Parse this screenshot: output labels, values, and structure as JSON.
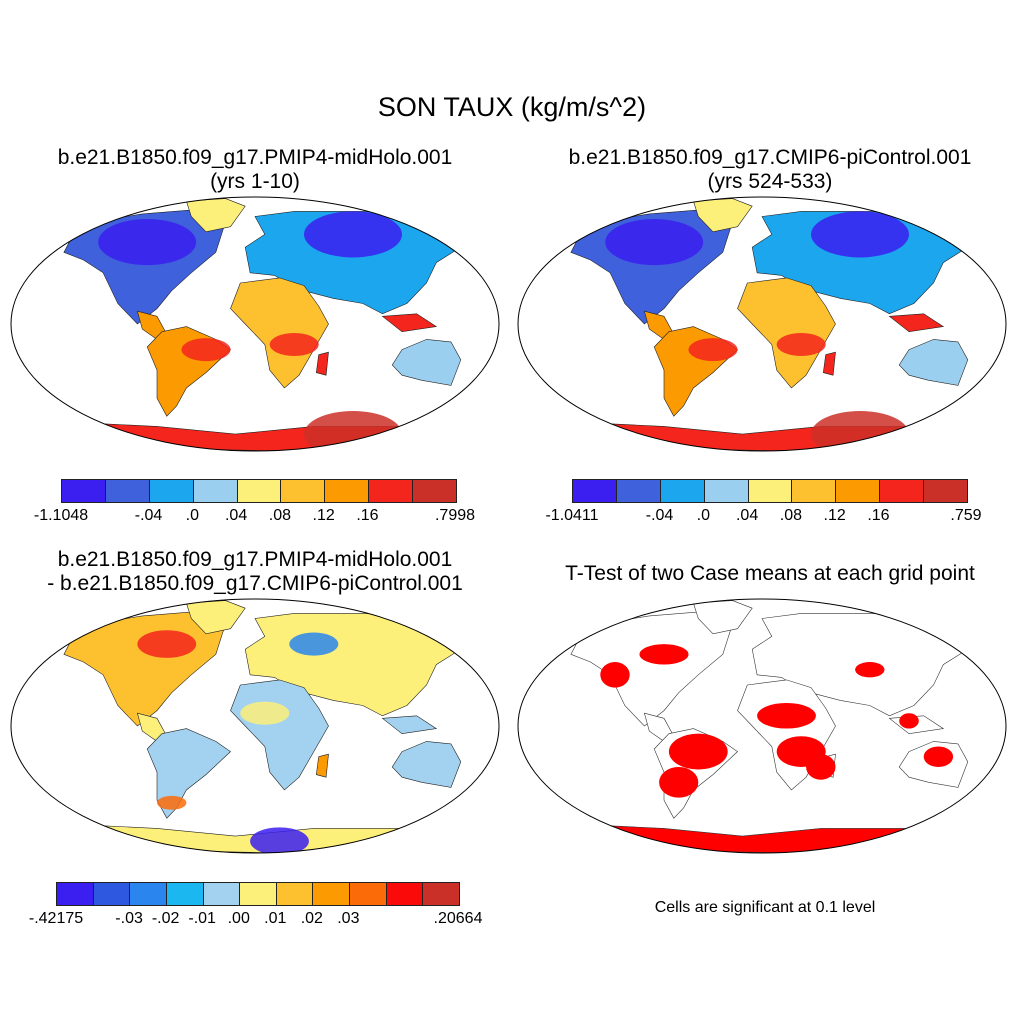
{
  "title": "SON TAUX (kg/m/s^2)",
  "panels": [
    {
      "id": "p1",
      "line1": "b.e21.B1850.f09_g17.PMIP4-midHolo.001",
      "line2": "(yrs 1-10)",
      "colorbar": {
        "colors": [
          "#3b1ff0",
          "#3f62dc",
          "#1ba6ee",
          "#9bcff0",
          "#fdf07a",
          "#fdc02f",
          "#fc9a02",
          "#f4251c",
          "#cb3028"
        ],
        "labels": [
          "-1.1048",
          "-.04",
          ".0",
          ".04",
          ".08",
          ".12",
          ".16",
          ".7998"
        ]
      }
    },
    {
      "id": "p2",
      "line1": "b.e21.B1850.f09_g17.CMIP6-piControl.001",
      "line2": "(yrs 524-533)",
      "colorbar": {
        "colors": [
          "#3b1ff0",
          "#3f62dc",
          "#1ba6ee",
          "#9bcff0",
          "#fdf07a",
          "#fdc02f",
          "#fc9a02",
          "#f4251c",
          "#cb3028"
        ],
        "labels": [
          "-1.0411",
          "-.04",
          ".0",
          ".04",
          ".08",
          ".12",
          ".16",
          ".759"
        ]
      }
    },
    {
      "id": "p3",
      "line1": "b.e21.B1850.f09_g17.PMIP4-midHolo.001",
      "line2": "- b.e21.B1850.f09_g17.CMIP6-piControl.001",
      "colorbar": {
        "colors": [
          "#3b1ff0",
          "#2f58e0",
          "#2a86ee",
          "#1bb7f0",
          "#a2d2f0",
          "#fdf07a",
          "#fdc02f",
          "#fc9a02",
          "#fb6b08",
          "#fb0a0a",
          "#cb3028"
        ],
        "labels": [
          "-.42175",
          "-.03",
          "-.02",
          "-.01",
          ".00",
          ".01",
          ".02",
          ".03",
          ".20664"
        ]
      }
    },
    {
      "id": "p4",
      "line1": "T-Test of two Case means at each grid point",
      "note": "Cells are significant at 0.1 level",
      "color": "#ff0000"
    }
  ]
}
